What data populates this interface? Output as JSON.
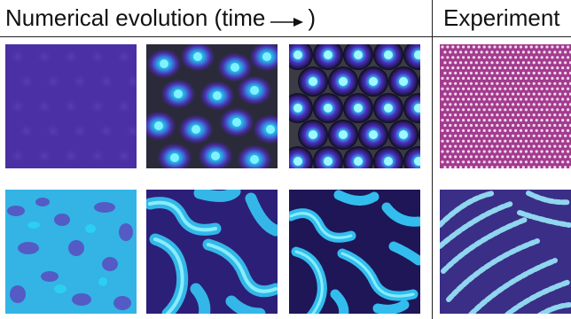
{
  "header": {
    "left_title": "Numerical evolution (time",
    "left_title_end": ")",
    "right_title": "Experiment",
    "arrow_icon": "long-right-arrow"
  },
  "panels": {
    "row1": [
      "sim-spots-early",
      "sim-spots-mid",
      "sim-spots-late",
      "exp-spots"
    ],
    "row2": [
      "sim-stripes-early",
      "sim-stripes-mid",
      "sim-stripes-late",
      "exp-stripes"
    ]
  },
  "colors": {
    "deep_purple": "#4a2fa3",
    "dark": "#1a1630",
    "cyan": "#2fd6f0",
    "magenta_bg": "#a23a8a"
  }
}
